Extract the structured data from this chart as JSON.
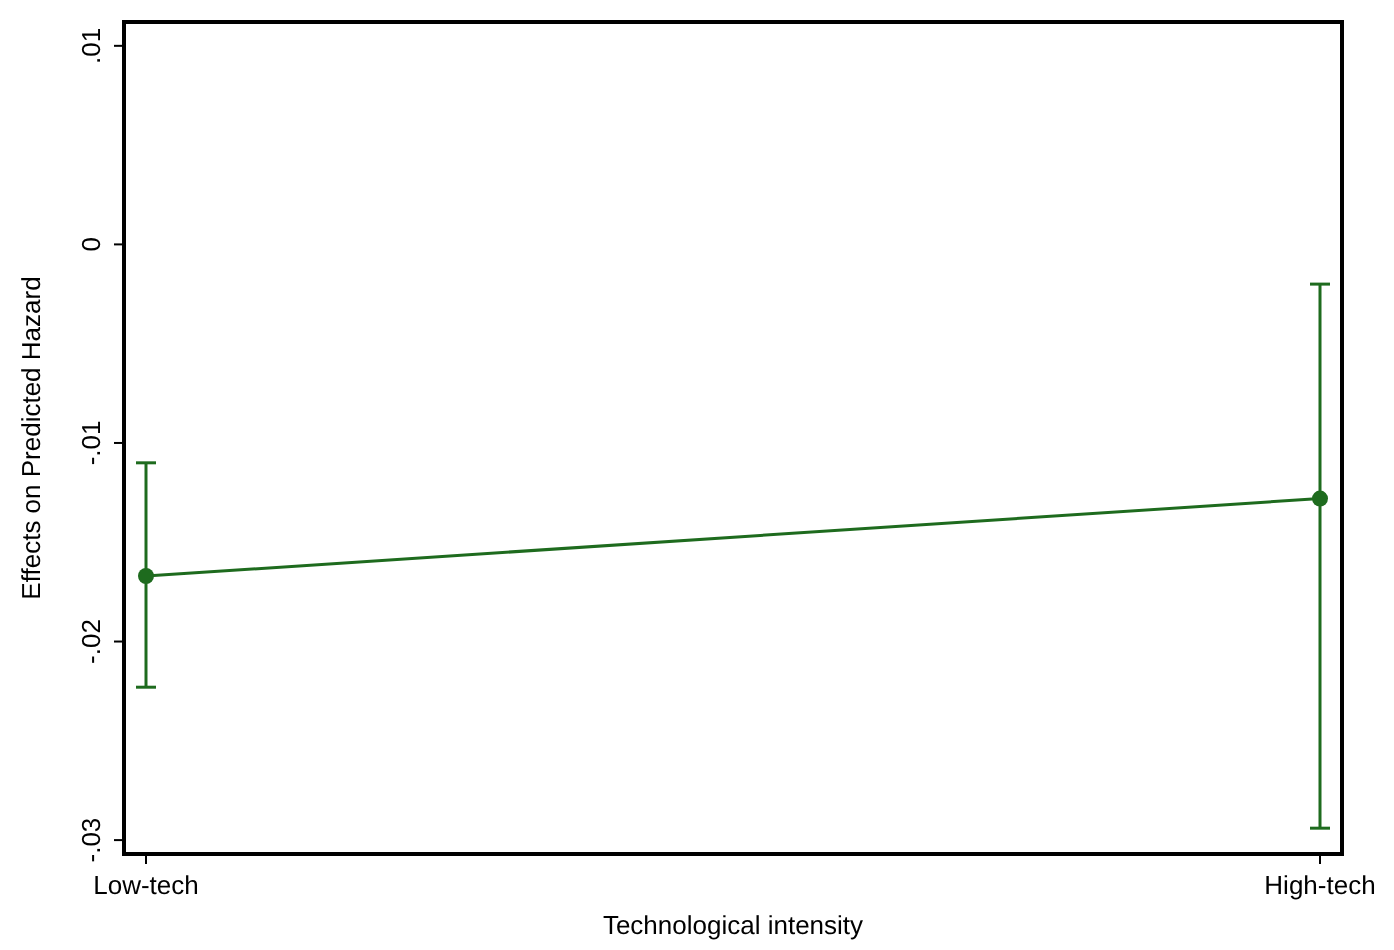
{
  "chart_data": {
    "type": "line",
    "xlabel": "Technological intensity",
    "ylabel": "Effects on Predicted Hazard",
    "categories": [
      "Low-tech",
      "High-tech"
    ],
    "series": [
      {
        "color": "#1e6b1e",
        "values": [
          -0.0167,
          -0.0128
        ],
        "errors": [
          [
            -0.0223,
            -0.011
          ],
          [
            -0.0294,
            -0.002
          ]
        ]
      }
    ],
    "ylim": [
      -0.0307,
      0.0112
    ],
    "yticks": [
      {
        "value": -0.03,
        "label": "-.03"
      },
      {
        "value": -0.02,
        "label": "-.02"
      },
      {
        "value": -0.01,
        "label": "-.01"
      },
      0,
      {
        "value": 0.01,
        "label": ".01"
      }
    ],
    "marker": "circle",
    "line_style": "solid"
  }
}
